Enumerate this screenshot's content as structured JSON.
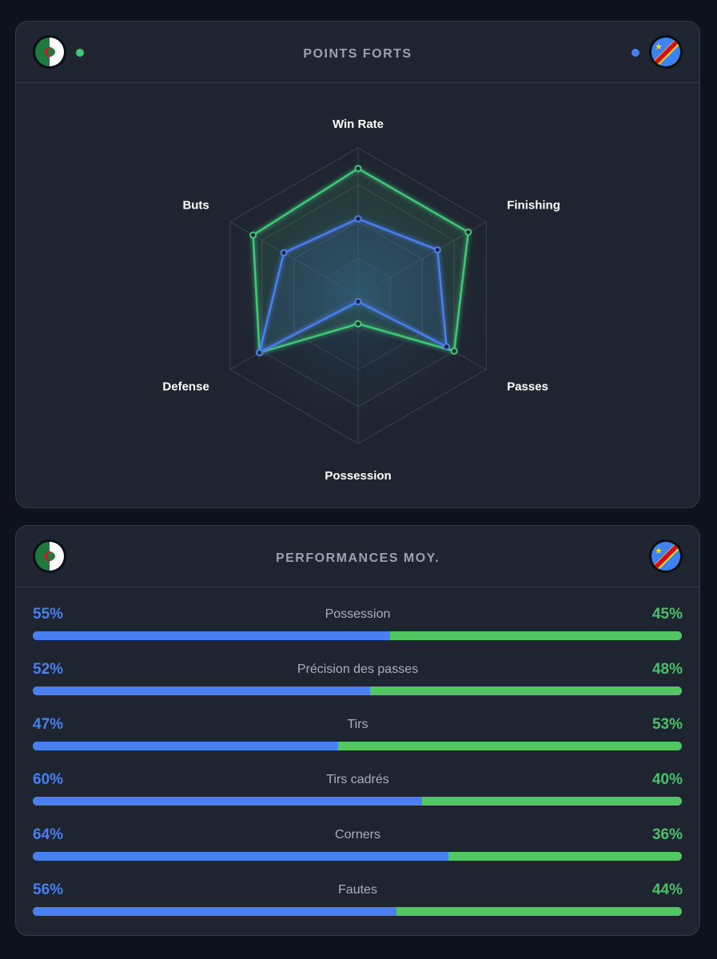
{
  "teams": {
    "left": {
      "name": "Algeria",
      "flag": "algeria-flag",
      "color": "#41c777"
    },
    "right": {
      "name": "DR Congo",
      "flag": "dr-congo-flag",
      "color": "#4a7ff0"
    }
  },
  "radar_card": {
    "title": "POINTS FORTS"
  },
  "chart_data": {
    "type": "radar",
    "title": "POINTS FORTS",
    "axes": [
      "Win Rate",
      "Finishing",
      "Passes",
      "Possession",
      "Defense",
      "Buts"
    ],
    "range": [
      0,
      100
    ],
    "series": [
      {
        "name": "Algeria",
        "color": "#41c777",
        "values": [
          86,
          86,
          75,
          19,
          77,
          82
        ]
      },
      {
        "name": "DR Congo",
        "color": "#4a7ff0",
        "values": [
          52,
          62,
          69,
          4,
          77,
          58
        ]
      }
    ]
  },
  "perf_card": {
    "title": "PERFORMANCES MOY.",
    "stats": [
      {
        "label": "Possession",
        "left": "55%",
        "right": "45%",
        "left_value": 55
      },
      {
        "label": "Précision des passes",
        "left": "52%",
        "right": "48%",
        "left_value": 52
      },
      {
        "label": "Tirs",
        "left": "47%",
        "right": "53%",
        "left_value": 47
      },
      {
        "label": "Tirs cadrés",
        "left": "60%",
        "right": "40%",
        "left_value": 60
      },
      {
        "label": "Corners",
        "left": "64%",
        "right": "36%",
        "left_value": 64
      },
      {
        "label": "Fautes",
        "left": "56%",
        "right": "44%",
        "left_value": 56
      }
    ]
  }
}
